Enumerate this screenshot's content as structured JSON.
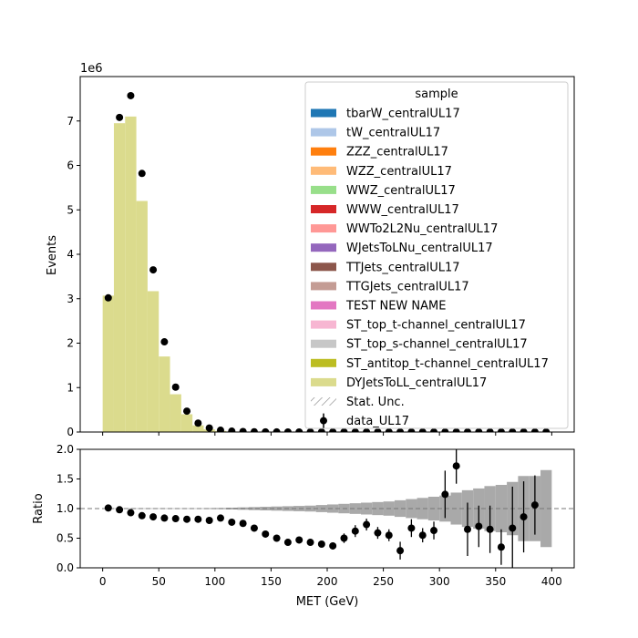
{
  "chart_data": {
    "type": "bar",
    "xlabel": "MET (GeV)",
    "top": {
      "ylabel": "Events",
      "scale_label": "1e6",
      "scale_factor": 1000000,
      "ylim": [
        0,
        8000000
      ],
      "yticks": [
        "0",
        "1",
        "2",
        "3",
        "4",
        "5",
        "6",
        "7"
      ],
      "grid": false
    },
    "ratio": {
      "ylabel": "Ratio",
      "ylim": [
        0,
        2
      ],
      "yticks": [
        "0.0",
        "0.5",
        "1.0",
        "1.5",
        "2.0"
      ],
      "reference_line": 1.0
    },
    "xlim": [
      -20,
      420
    ],
    "xticks": [
      "0",
      "50",
      "100",
      "150",
      "200",
      "250",
      "300",
      "350",
      "400"
    ],
    "bin_edges": [
      0,
      10,
      20,
      30,
      40,
      50,
      60,
      70,
      80,
      90,
      100,
      110,
      120,
      130,
      140,
      150,
      160,
      170,
      180,
      190,
      200,
      210,
      220,
      230,
      240,
      250,
      260,
      270,
      280,
      290,
      300,
      310,
      320,
      330,
      340,
      350,
      360,
      370,
      380,
      390,
      400
    ],
    "legend": {
      "title": "sample",
      "placement": "upper right",
      "entries": [
        {
          "label": "tbarW_centralUL17",
          "color": "#1f77b4",
          "kind": "patch"
        },
        {
          "label": "tW_centralUL17",
          "color": "#aec7e8",
          "kind": "patch"
        },
        {
          "label": "ZZZ_centralUL17",
          "color": "#ff7f0e",
          "kind": "patch"
        },
        {
          "label": "WZZ_centralUL17",
          "color": "#ffbb78",
          "kind": "patch"
        },
        {
          "label": "WWZ_centralUL17",
          "color": "#98df8a",
          "kind": "patch"
        },
        {
          "label": "WWW_centralUL17",
          "color": "#d62728",
          "kind": "patch"
        },
        {
          "label": "WWTo2L2Nu_centralUL17",
          "color": "#ff9896",
          "kind": "patch"
        },
        {
          "label": "WJetsToLNu_centralUL17",
          "color": "#9467bd",
          "kind": "patch"
        },
        {
          "label": "TTJets_centralUL17",
          "color": "#8c564b",
          "kind": "patch"
        },
        {
          "label": "TTGJets_centralUL17",
          "color": "#c49c94",
          "kind": "patch"
        },
        {
          "label": "TEST NEW NAME",
          "color": "#e377c2",
          "kind": "patch"
        },
        {
          "label": "ST_top_t-channel_centralUL17",
          "color": "#f7b6d2",
          "kind": "patch"
        },
        {
          "label": "ST_top_s-channel_centralUL17",
          "color": "#c7c7c7",
          "kind": "patch"
        },
        {
          "label": "ST_antitop_t-channel_centralUL17",
          "color": "#bcbd22",
          "kind": "patch"
        },
        {
          "label": "DYJetsToLL_centralUL17",
          "color": "#dbdb8d",
          "kind": "patch"
        },
        {
          "label": "Stat. Unc.",
          "color": "#888888",
          "kind": "hatch"
        },
        {
          "label": "data_UL17",
          "color": "#000000",
          "kind": "errorbar"
        }
      ]
    },
    "series": [
      {
        "name": "DYJetsToLL_centralUL17",
        "color": "#dbdb8d",
        "values": [
          3070000,
          6950000,
          7100000,
          5200000,
          3170000,
          1700000,
          850000,
          400000,
          150000,
          60000,
          25000,
          12000,
          6000,
          3500,
          2200,
          1400,
          900,
          600,
          400,
          300,
          250,
          200,
          150,
          120,
          100,
          80,
          60,
          50,
          40,
          30,
          25,
          20,
          15,
          12,
          10,
          8,
          6,
          5,
          4,
          3
        ]
      },
      {
        "name": "data_UL17",
        "color": "#000000",
        "values": [
          3020000,
          7080000,
          7570000,
          5820000,
          3650000,
          2030000,
          1010000,
          470000,
          200000,
          90000,
          40000,
          20000,
          10000,
          5000,
          3000,
          1500,
          1000,
          500,
          300,
          200,
          100,
          80,
          60,
          50,
          40,
          30,
          20,
          20,
          15,
          10,
          10,
          10,
          5,
          5,
          5,
          3,
          3,
          3,
          2,
          2
        ]
      }
    ],
    "ratio_points": {
      "x": [
        5,
        15,
        25,
        35,
        45,
        55,
        65,
        75,
        85,
        95,
        105,
        115,
        125,
        135,
        145,
        155,
        165,
        175,
        185,
        195,
        205,
        215,
        225,
        235,
        245,
        255,
        265,
        275,
        285,
        295,
        305,
        315,
        325,
        335,
        345,
        355,
        365,
        375,
        385
      ],
      "values": [
        1.01,
        0.98,
        0.93,
        0.88,
        0.86,
        0.84,
        0.83,
        0.82,
        0.82,
        0.8,
        0.84,
        0.77,
        0.75,
        0.67,
        0.57,
        0.5,
        0.43,
        0.47,
        0.43,
        0.4,
        0.37,
        0.5,
        0.62,
        0.73,
        0.59,
        0.55,
        0.29,
        0.67,
        0.55,
        0.63,
        1.24,
        1.72,
        0.65,
        0.7,
        0.65,
        0.35,
        0.67,
        0.86,
        1.06
      ],
      "errors": [
        0.01,
        0.01,
        0.01,
        0.01,
        0.01,
        0.01,
        0.01,
        0.01,
        0.01,
        0.02,
        0.02,
        0.03,
        0.03,
        0.04,
        0.04,
        0.04,
        0.04,
        0.04,
        0.05,
        0.05,
        0.06,
        0.08,
        0.1,
        0.1,
        0.1,
        0.1,
        0.15,
        0.15,
        0.12,
        0.15,
        0.4,
        0.3,
        0.45,
        0.35,
        0.4,
        0.3,
        0.7,
        0.6,
        0.5
      ]
    },
    "ratio_uncertainty": {
      "half_width": [
        0.005,
        0.005,
        0.005,
        0.005,
        0.005,
        0.005,
        0.005,
        0.005,
        0.005,
        0.008,
        0.01,
        0.015,
        0.02,
        0.025,
        0.03,
        0.035,
        0.04,
        0.045,
        0.05,
        0.06,
        0.07,
        0.08,
        0.09,
        0.1,
        0.11,
        0.12,
        0.14,
        0.16,
        0.18,
        0.2,
        0.22,
        0.27,
        0.31,
        0.34,
        0.38,
        0.4,
        0.45,
        0.55,
        0.55,
        0.65
      ]
    }
  }
}
